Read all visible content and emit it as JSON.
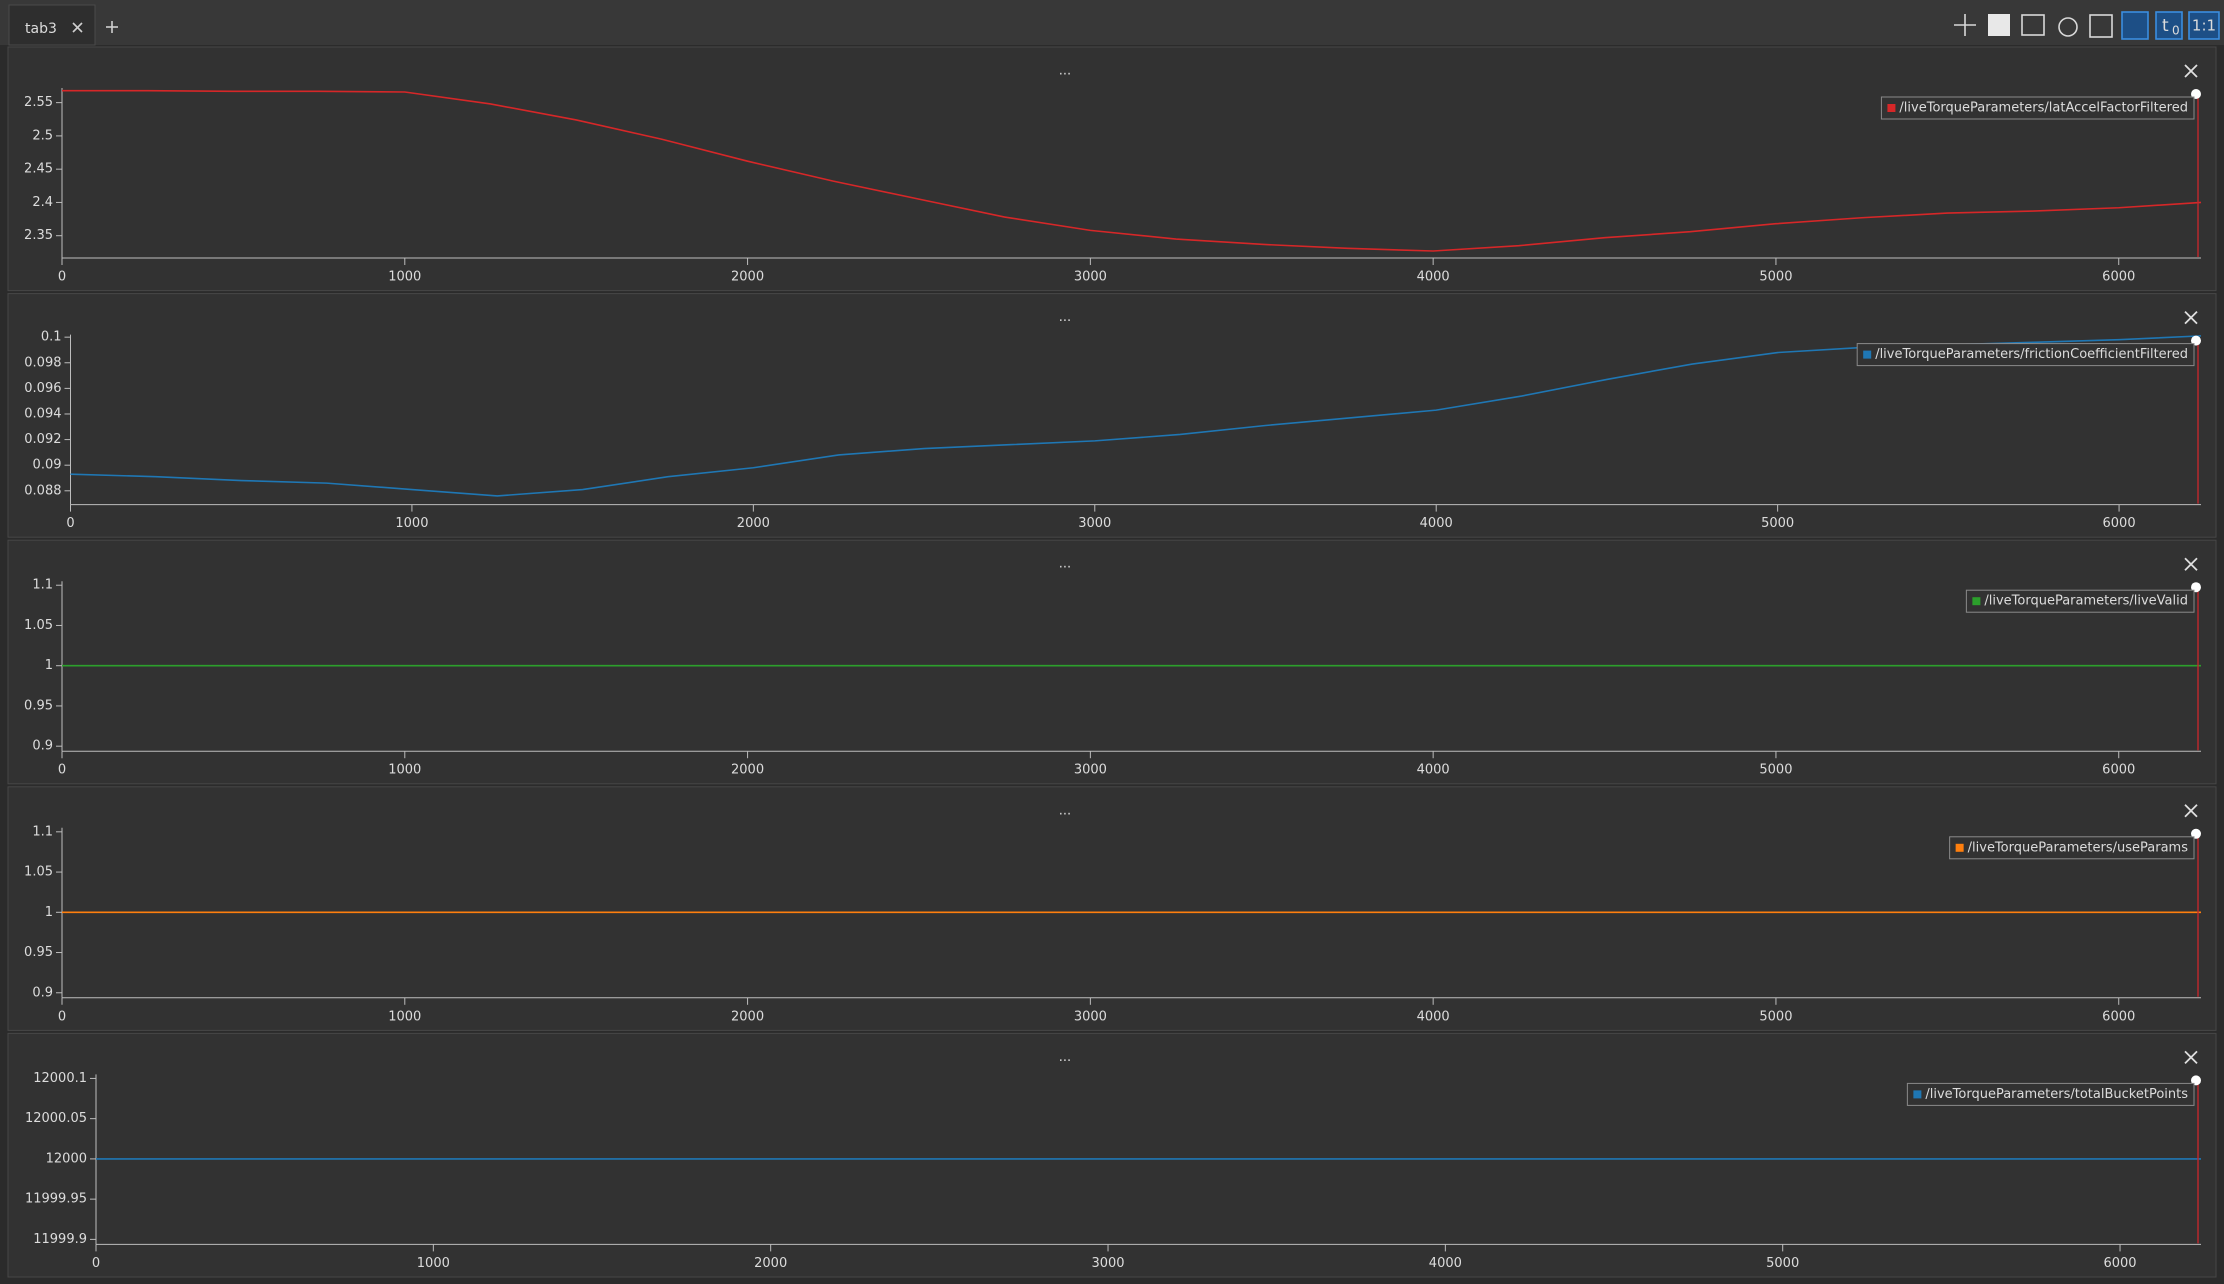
{
  "tabs": [
    {
      "label": "tab3"
    }
  ],
  "toolbar": {
    "time_symbol": "t",
    "time_subscript": "0",
    "ratio": "1:1"
  },
  "chart_data": [
    {
      "type": "line",
      "title": "...",
      "x": [
        0,
        250,
        500,
        750,
        1000,
        1250,
        1500,
        1750,
        2000,
        2250,
        2500,
        2750,
        3000,
        3250,
        3500,
        3750,
        4000,
        4250,
        4500,
        4750,
        5000,
        5250,
        5500,
        5750,
        6000,
        6240
      ],
      "series": [
        {
          "name": "/liveTorqueParameters/latAccelFactorFiltered",
          "color": "#d62728",
          "values": [
            2.568,
            2.568,
            2.567,
            2.567,
            2.566,
            2.548,
            2.524,
            2.495,
            2.462,
            2.432,
            2.405,
            2.378,
            2.358,
            2.345,
            2.337,
            2.331,
            2.327,
            2.335,
            2.347,
            2.356,
            2.368,
            2.377,
            2.384,
            2.387,
            2.392,
            2.4
          ]
        }
      ],
      "xlim": [
        0,
        6240
      ],
      "xticks": [
        0,
        1000,
        2000,
        3000,
        4000,
        5000,
        6000
      ],
      "ylim": [
        2.318,
        2.572
      ],
      "yticks": [
        2.35,
        2.4,
        2.45,
        2.5,
        2.55
      ]
    },
    {
      "type": "line",
      "title": "...",
      "x": [
        0,
        250,
        500,
        750,
        1000,
        1250,
        1500,
        1750,
        2000,
        2250,
        2500,
        2750,
        3000,
        3250,
        3500,
        3750,
        4000,
        4250,
        4500,
        4750,
        5000,
        5250,
        5500,
        5750,
        6000,
        6240
      ],
      "series": [
        {
          "name": "/liveTorqueParameters/frictionCoefficientFiltered",
          "color": "#1f77b4",
          "values": [
            0.0893,
            0.0891,
            0.0888,
            0.0886,
            0.0881,
            0.0876,
            0.0881,
            0.0891,
            0.0898,
            0.0908,
            0.0913,
            0.0916,
            0.0919,
            0.0924,
            0.0931,
            0.0937,
            0.0943,
            0.0954,
            0.0967,
            0.0979,
            0.0988,
            0.0992,
            0.0994,
            0.0996,
            0.0998,
            0.1001
          ]
        }
      ],
      "xlim": [
        0,
        6240
      ],
      "xticks": [
        0,
        1000,
        2000,
        3000,
        4000,
        5000,
        6000
      ],
      "ylim": [
        0.087,
        0.1002
      ],
      "yticks": [
        0.088,
        0.09,
        0.092,
        0.094,
        0.096,
        0.098,
        0.1
      ]
    },
    {
      "type": "line",
      "title": "...",
      "x": [
        0,
        6240
      ],
      "series": [
        {
          "name": "/liveTorqueParameters/liveValid",
          "color": "#2ca02c",
          "values": [
            1,
            1
          ]
        }
      ],
      "xlim": [
        0,
        6240
      ],
      "xticks": [
        0,
        1000,
        2000,
        3000,
        4000,
        5000,
        6000
      ],
      "ylim": [
        0.895,
        1.105
      ],
      "yticks": [
        0.9,
        0.95,
        1,
        1.05,
        1.1
      ]
    },
    {
      "type": "line",
      "title": "...",
      "x": [
        0,
        6240
      ],
      "series": [
        {
          "name": "/liveTorqueParameters/useParams",
          "color": "#ff7f0e",
          "values": [
            1,
            1
          ]
        }
      ],
      "xlim": [
        0,
        6240
      ],
      "xticks": [
        0,
        1000,
        2000,
        3000,
        4000,
        5000,
        6000
      ],
      "ylim": [
        0.895,
        1.105
      ],
      "yticks": [
        0.9,
        0.95,
        1,
        1.05,
        1.1
      ]
    },
    {
      "type": "line",
      "title": "...",
      "x": [
        0,
        6240
      ],
      "series": [
        {
          "name": "/liveTorqueParameters/totalBucketPoints",
          "color": "#1f77b4",
          "values": [
            12000,
            12000
          ]
        }
      ],
      "xlim": [
        0,
        6240
      ],
      "xticks": [
        0,
        1000,
        2000,
        3000,
        4000,
        5000,
        6000
      ],
      "ylim": [
        11999.895,
        12000.105
      ],
      "yticks": [
        11999.9,
        11999.95,
        12000,
        12000.05,
        12000.1
      ]
    }
  ]
}
